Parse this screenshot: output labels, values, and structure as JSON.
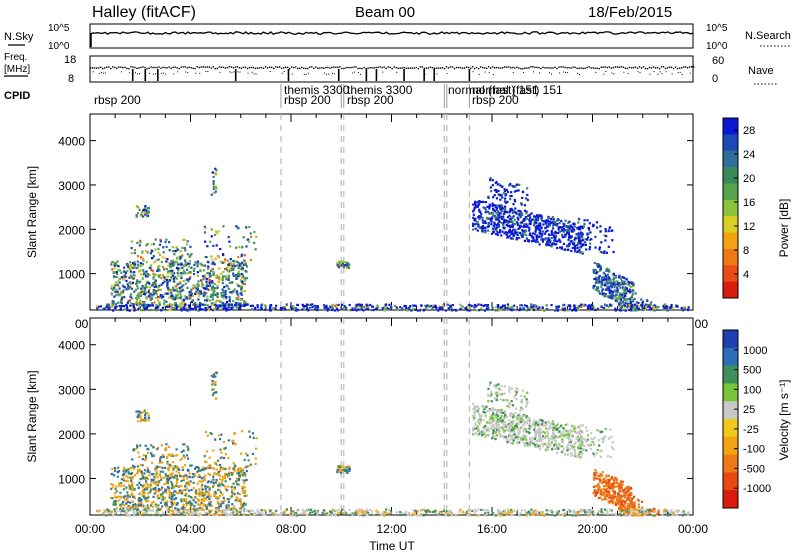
{
  "header": {
    "station": "Halley (fitACF)",
    "beam": "Beam 00",
    "date": "18/Feb/2015"
  },
  "strip_labels": {
    "nsky": "N.Sky",
    "nsearch": "N.Search",
    "freq_line1": "Freq.",
    "freq_line2": "[MHz]",
    "nave": "Nave",
    "cpid": "CPID",
    "nsky_ticks": [
      "10^5",
      "10^0"
    ],
    "nsearch_ticks": [
      "10^5",
      "10^0"
    ],
    "freq_ticks": [
      "18",
      "8"
    ],
    "nave_ticks": [
      "60",
      "0"
    ]
  },
  "chart_data": [
    {
      "type": "heatmap",
      "name": "power-panel",
      "ylabel": "Slant Range [km]",
      "xlabel": "",
      "x_ticks": [
        "00:00",
        "04:00",
        "08:00",
        "12:00",
        "16:00",
        "20:00",
        "00:00"
      ],
      "y_ticks": [
        1000,
        2000,
        3000,
        4000
      ],
      "ylim": [
        180,
        4600
      ],
      "xlim_hours": [
        0,
        24
      ],
      "colorbar": {
        "label": "Power [dB]",
        "ticks": [
          "4",
          "8",
          "12",
          "16",
          "20",
          "24",
          "28"
        ],
        "colors": [
          "#0a18d6",
          "#1e48b8",
          "#2f6e9a",
          "#3a8a5c",
          "#55a34a",
          "#8cc43a",
          "#d8d020",
          "#f2a312",
          "#ef7a14",
          "#e84e12",
          "#d81d0c"
        ]
      }
    },
    {
      "type": "heatmap",
      "name": "velocity-panel",
      "ylabel": "Slant Range [km]",
      "xlabel": "Time UT",
      "x_ticks": [
        "00:00",
        "04:00",
        "08:00",
        "12:00",
        "16:00",
        "20:00",
        "00:00"
      ],
      "y_ticks": [
        1000,
        2000,
        3000,
        4000
      ],
      "ylim": [
        180,
        4600
      ],
      "xlim_hours": [
        0,
        24
      ],
      "colorbar": {
        "label": "Velocity [m s⁻¹]",
        "ticks": [
          "1000",
          "500",
          "100",
          "25",
          "-25",
          "-100",
          "-500",
          "-1000"
        ],
        "colors": [
          "#1f3fae",
          "#2d6cb6",
          "#3f8f5a",
          "#79c43a",
          "#c8c8c8",
          "#f2c81a",
          "#f2a312",
          "#ef7a14",
          "#e84812",
          "#d81b0c"
        ]
      }
    }
  ],
  "cpid": {
    "runs": [
      {
        "label": "rbsp 200",
        "start": 0.0
      },
      {
        "label": "themis 3300",
        "start": 7.6
      },
      {
        "label": "rbsp 200",
        "start": 7.6
      },
      {
        "label": "themis 3300",
        "start": 10.0
      },
      {
        "label": "rbsp 200",
        "start": 10.0
      },
      {
        "label": "normal (fast) 151",
        "start": 14.1
      },
      {
        "label": "normal (fast) 151",
        "start": 15.1
      },
      {
        "label": "rbsp 200",
        "start": 15.1
      }
    ],
    "boundaries": [
      7.6,
      10.0,
      10.1,
      14.1,
      14.2,
      15.1
    ]
  }
}
